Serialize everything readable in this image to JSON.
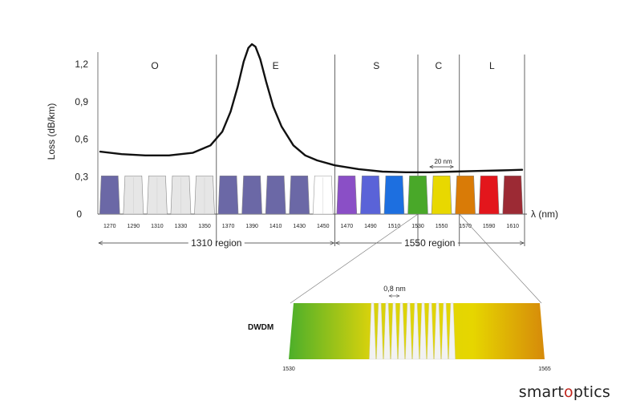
{
  "chart_data": {
    "type": "line",
    "ylabel": "Loss (dB/km)",
    "xlabel": "λ (nm)",
    "y_axis_zero": "0",
    "ylim": [
      0,
      1.4
    ],
    "yticks": [
      {
        "label": "0,3",
        "value": 0.3
      },
      {
        "label": "0,6",
        "value": 0.6
      },
      {
        "label": "0,9",
        "value": 0.9
      },
      {
        "label": "1,2",
        "value": 1.2
      }
    ],
    "xlim": [
      1260,
      1620
    ],
    "bands": [
      {
        "name": "O",
        "start": 1260,
        "end": 1360
      },
      {
        "name": "E",
        "start": 1360,
        "end": 1460
      },
      {
        "name": "S",
        "start": 1460,
        "end": 1530
      },
      {
        "name": "C",
        "start": 1530,
        "end": 1565
      },
      {
        "name": "L",
        "start": 1565,
        "end": 1625
      }
    ],
    "cwdm_channels": [
      {
        "label": "1270",
        "wavelength": 1270,
        "color": "#6b68a6"
      },
      {
        "label": "1290",
        "wavelength": 1290,
        "color": "#e6e6e6"
      },
      {
        "label": "1310",
        "wavelength": 1310,
        "color": "#e6e6e6"
      },
      {
        "label": "1330",
        "wavelength": 1330,
        "color": "#e6e6e6"
      },
      {
        "label": "1350",
        "wavelength": 1350,
        "color": "#e6e6e6"
      },
      {
        "label": "1370",
        "wavelength": 1370,
        "color": "#6b68a6"
      },
      {
        "label": "1390",
        "wavelength": 1390,
        "color": "#6b68a6"
      },
      {
        "label": "1410",
        "wavelength": 1410,
        "color": "#6b68a6"
      },
      {
        "label": "1430",
        "wavelength": 1430,
        "color": "#6b68a6"
      },
      {
        "label": "1450",
        "wavelength": 1450,
        "color": "#ffffff"
      },
      {
        "label": "1470",
        "wavelength": 1470,
        "color": "#8a4fc6"
      },
      {
        "label": "1490",
        "wavelength": 1490,
        "color": "#5a63d8"
      },
      {
        "label": "1510",
        "wavelength": 1510,
        "color": "#1d6fe0"
      },
      {
        "label": "1530",
        "wavelength": 1530,
        "color": "#49a829"
      },
      {
        "label": "1550",
        "wavelength": 1550,
        "color": "#e8d800"
      },
      {
        "label": "1570",
        "wavelength": 1570,
        "color": "#d97b07"
      },
      {
        "label": "1590",
        "wavelength": 1590,
        "color": "#e3161c"
      },
      {
        "label": "1610",
        "wavelength": 1610,
        "color": "#9c2a34"
      }
    ],
    "channel_loss_level": 0.3,
    "spacing_annotation": "20 nm",
    "attenuation_curve": {
      "x": [
        1262,
        1280,
        1300,
        1320,
        1340,
        1355,
        1365,
        1372,
        1378,
        1383,
        1387,
        1390,
        1393,
        1397,
        1402,
        1408,
        1415,
        1425,
        1435,
        1445,
        1460,
        1480,
        1500,
        1520,
        1540,
        1560,
        1580,
        1600,
        1618
      ],
      "y": [
        0.5,
        0.48,
        0.47,
        0.47,
        0.49,
        0.55,
        0.66,
        0.82,
        1.02,
        1.22,
        1.33,
        1.36,
        1.34,
        1.24,
        1.06,
        0.86,
        0.7,
        0.55,
        0.47,
        0.43,
        0.39,
        0.36,
        0.34,
        0.335,
        0.335,
        0.34,
        0.345,
        0.35,
        0.355
      ]
    },
    "regions": [
      {
        "label": "1310 region",
        "start": 1260,
        "end": 1460
      },
      {
        "label": "1550 region",
        "start": 1460,
        "end": 1625
      }
    ],
    "dwdm": {
      "label": "DWDM",
      "start_label": "1530",
      "end_label": "1565",
      "spacing_annotation": "0,8 nm",
      "channel_count": 12
    }
  },
  "brand": {
    "prefix": "smart",
    "accent": "o",
    "suffix": "ptics"
  }
}
